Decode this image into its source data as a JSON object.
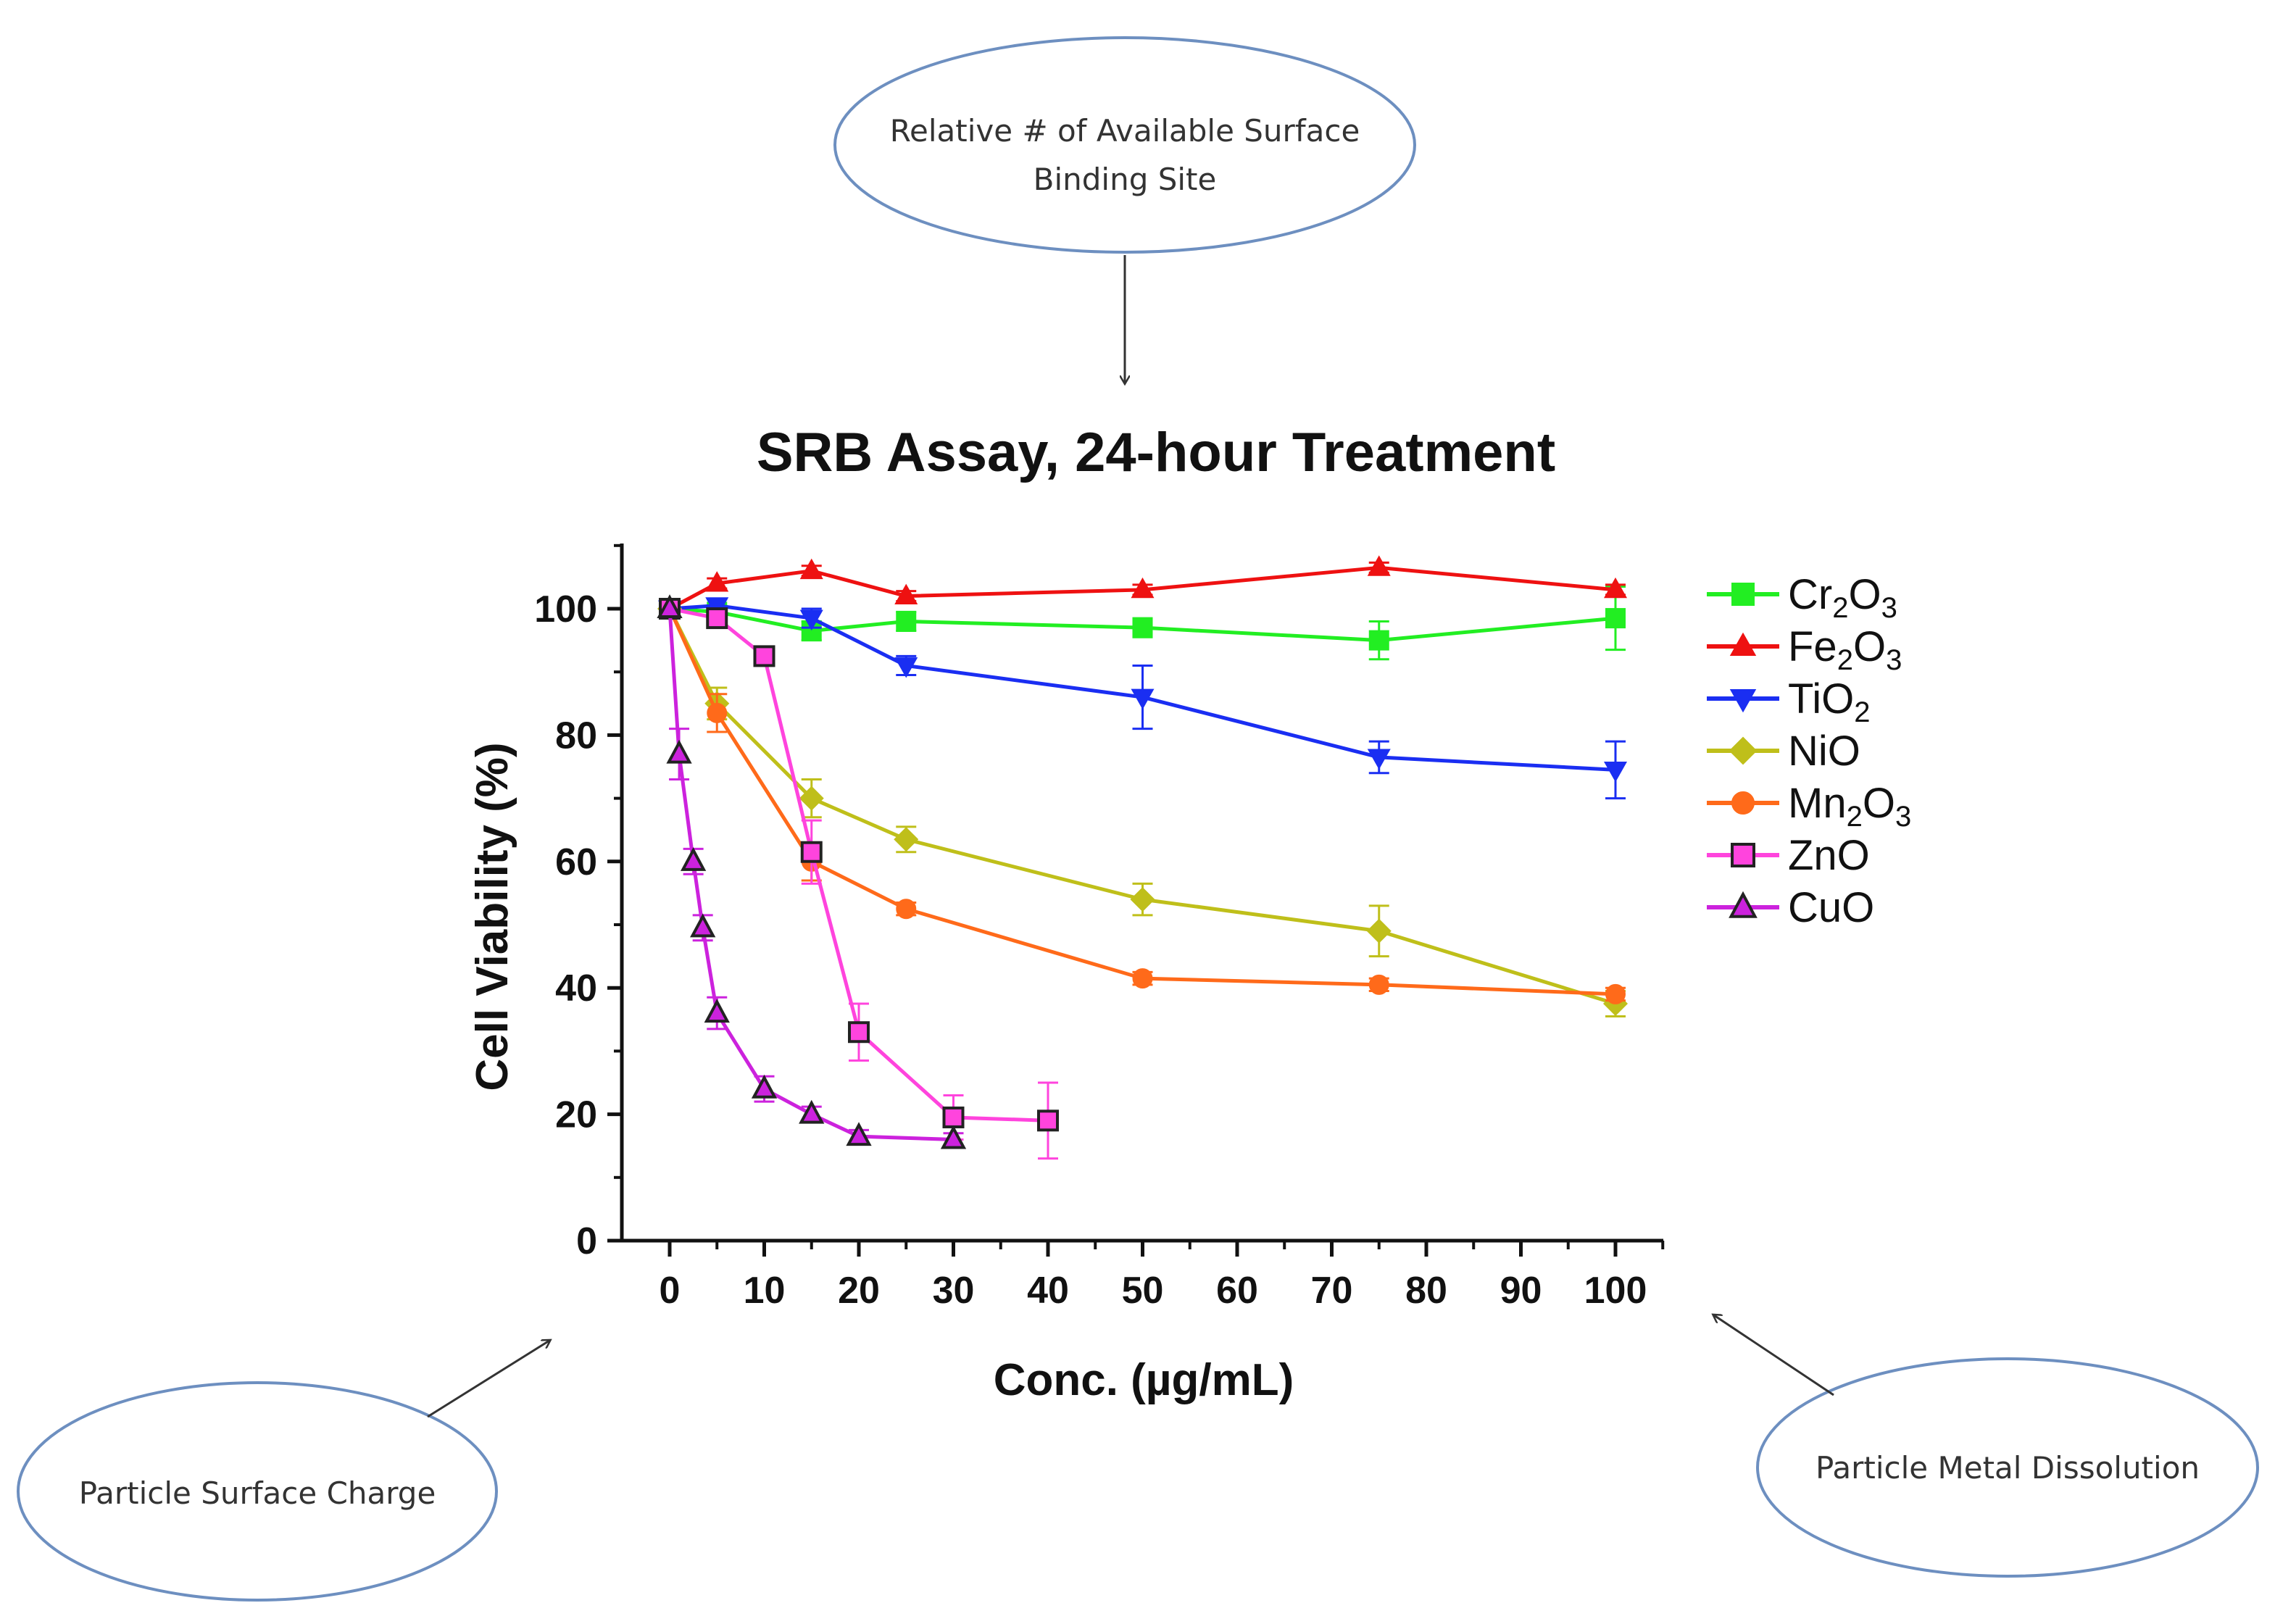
{
  "annotations": {
    "top": [
      "Relative # of Available Surface",
      "Binding Site"
    ],
    "left": "Particle Surface Charge",
    "right": "Particle Metal Dissolution",
    "ellipse_color": "#6d8fc0"
  },
  "chart_data": {
    "type": "line",
    "title": "SRB Assay, 24-hour Treatment",
    "xlabel": "Conc. (µg/mL)",
    "ylabel": "Cell Viability (%)",
    "ylim": [
      0,
      110
    ],
    "yticks": [
      0,
      20,
      40,
      60,
      80,
      100
    ],
    "y_tick_labels": [
      "0",
      "20",
      "40",
      "60",
      "80",
      "100"
    ],
    "x_tick_labels": [
      "0",
      "10",
      "20",
      "30",
      "40",
      "50",
      "60",
      "70",
      "80",
      "90",
      "100"
    ],
    "x_axis_note": "Axis is piecewise: 0-40 at 10-unit steps, 50-100 at 10-unit steps; tick labels are equally spaced",
    "legend_position": "right",
    "series": [
      {
        "name": "Cr2O3",
        "base": "Cr",
        "sub1": "2",
        "mid": "O",
        "sub2": "3",
        "color": "#22ee22",
        "marker": "square",
        "x": [
          0,
          5,
          15,
          25,
          50,
          75,
          100
        ],
        "y": [
          100,
          99.5,
          96.5,
          98,
          97,
          95,
          98.5
        ],
        "err": [
          0,
          1,
          1.5,
          1.5,
          1.5,
          3,
          5
        ]
      },
      {
        "name": "Fe2O3",
        "base": "Fe",
        "sub1": "2",
        "mid": "O",
        "sub2": "3",
        "color": "#ee1111",
        "marker": "triangle-up",
        "x": [
          0,
          5,
          15,
          25,
          50,
          75,
          100
        ],
        "y": [
          100,
          104,
          106,
          102,
          103,
          106.5,
          103
        ],
        "err": [
          0,
          0.8,
          0.8,
          0.8,
          0.8,
          0.8,
          0.8
        ]
      },
      {
        "name": "TiO2",
        "base": "Ti",
        "sub1": "",
        "mid": "O",
        "sub2": "2",
        "color": "#1a2ef2",
        "marker": "triangle-down",
        "x": [
          0,
          5,
          15,
          25,
          50,
          75,
          100
        ],
        "y": [
          100,
          100.5,
          98.5,
          91,
          86,
          76.5,
          74.5
        ],
        "err": [
          0,
          1,
          1.5,
          1.5,
          5,
          2.5,
          4.5
        ]
      },
      {
        "name": "NiO",
        "base": "NiO",
        "sub1": "",
        "mid": "",
        "sub2": "",
        "color": "#bfbf1a",
        "marker": "diamond",
        "x": [
          0,
          5,
          15,
          25,
          50,
          75,
          100
        ],
        "y": [
          100,
          85,
          70,
          63.5,
          54,
          49,
          37.5
        ],
        "err": [
          0,
          2.5,
          3,
          2,
          2.5,
          4,
          2
        ]
      },
      {
        "name": "Mn2O3",
        "base": "Mn",
        "sub1": "2",
        "mid": "O",
        "sub2": "3",
        "color": "#ff6a1a",
        "marker": "circle",
        "x": [
          0,
          5,
          15,
          25,
          50,
          75,
          100
        ],
        "y": [
          100,
          83.5,
          60,
          52.5,
          41.5,
          40.5,
          39
        ],
        "err": [
          0,
          3,
          3,
          1,
          1,
          1,
          1
        ]
      },
      {
        "name": "ZnO",
        "base": "ZnO",
        "sub1": "",
        "mid": "",
        "sub2": "",
        "color": "#ff44dd",
        "marker": "square-open",
        "x": [
          0,
          5,
          10,
          15,
          20,
          30,
          40
        ],
        "y": [
          100,
          98.5,
          92.5,
          61.5,
          33,
          19.5,
          19
        ],
        "err": [
          0,
          1,
          1.5,
          5,
          4.5,
          3.5,
          6
        ]
      },
      {
        "name": "CuO",
        "base": "CuO",
        "sub1": "",
        "mid": "",
        "sub2": "",
        "color": "#cc22dd",
        "marker": "triangle-open",
        "x": [
          0,
          1,
          2.5,
          3.5,
          5,
          10,
          15,
          20,
          30
        ],
        "y": [
          100,
          77,
          60,
          49.5,
          36,
          24,
          20,
          16.5,
          16
        ],
        "err": [
          0,
          4,
          2,
          2,
          2.5,
          2,
          1.2,
          1,
          1
        ]
      }
    ]
  }
}
